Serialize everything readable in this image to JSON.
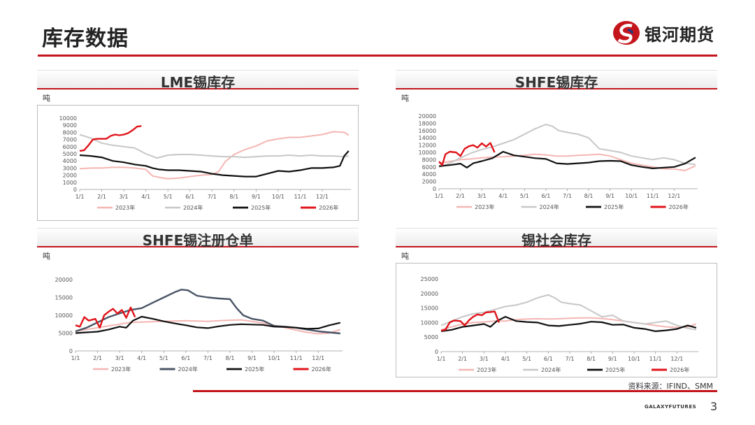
{
  "page": {
    "title": "库存数据",
    "source": "资料来源：IFIND、SMM",
    "page_number": "3",
    "footer_brand": "GALAXYFUTURES"
  },
  "brand": {
    "name": "银河期货",
    "accent": "#c4151c",
    "logo_color": "#c4151c",
    "logo_blue": "#1d3a8a"
  },
  "panels": [
    {
      "title": "LME锡库存",
      "unit": "吨"
    },
    {
      "title": "SHFE锡库存",
      "unit": "吨"
    },
    {
      "title": "SHFE锡注册仓单",
      "unit": "吨"
    },
    {
      "title": "锡社会库存",
      "unit": "吨"
    }
  ],
  "chart_data": [
    {
      "type": "line",
      "title": "LME锡库存",
      "ylabel": "吨",
      "xticks": [
        "1/1",
        "2/1",
        "3/1",
        "4/1",
        "5/1",
        "6/1",
        "7/1",
        "8/1",
        "9/1",
        "10/1",
        "11/1",
        "12/1"
      ],
      "xlim": [
        1,
        13.3
      ],
      "ylim": [
        0,
        10000
      ],
      "yticks": [
        0,
        1000,
        2000,
        3000,
        4000,
        5000,
        6000,
        7000,
        8000,
        9000,
        10000
      ],
      "series": [
        {
          "name": "2023年",
          "color": "#f4b6b3",
          "width": 2,
          "x": [
            1,
            1.5,
            2,
            2.5,
            3,
            3.5,
            4,
            4.3,
            4.6,
            5,
            5.5,
            6,
            6.5,
            7,
            7.3,
            7.6,
            8,
            8.5,
            9,
            9.5,
            10,
            10.5,
            11,
            11.5,
            12,
            12.5,
            13,
            13.2
          ],
          "y": [
            2900,
            3000,
            3000,
            3100,
            3100,
            3000,
            2800,
            1900,
            1700,
            1500,
            1600,
            1800,
            2000,
            2100,
            2500,
            3900,
            4900,
            5600,
            6100,
            6800,
            7100,
            7300,
            7300,
            7500,
            7700,
            8100,
            8000,
            7600
          ]
        },
        {
          "name": "2024年",
          "color": "#c7c7c7",
          "width": 2,
          "x": [
            1,
            1.5,
            2,
            2.5,
            3,
            3.5,
            4,
            4.5,
            5,
            5.5,
            6,
            6.5,
            7,
            7.5,
            8,
            8.5,
            9,
            9.5,
            10,
            10.5,
            11,
            11.5,
            12,
            12.5,
            13,
            13.2
          ],
          "y": [
            7700,
            7200,
            6500,
            6200,
            6000,
            5800,
            5000,
            4400,
            4800,
            4900,
            4900,
            4800,
            4700,
            4600,
            4600,
            4500,
            4600,
            4700,
            4700,
            4800,
            4700,
            4800,
            4700,
            4700,
            4600,
            4700
          ]
        },
        {
          "name": "2025年",
          "color": "#111111",
          "width": 2.2,
          "x": [
            1,
            1.5,
            2,
            2.5,
            3,
            3.5,
            4,
            4.3,
            4.6,
            5,
            5.5,
            6,
            6.5,
            7,
            7.5,
            8,
            8.5,
            9,
            9.5,
            10,
            10.5,
            11,
            11.5,
            12,
            12.5,
            12.8,
            13,
            13.2
          ],
          "y": [
            4800,
            4700,
            4500,
            4000,
            3800,
            3500,
            3300,
            3000,
            2800,
            2700,
            2700,
            2600,
            2500,
            2200,
            2000,
            1900,
            1800,
            1800,
            2200,
            2600,
            2500,
            2700,
            3000,
            3000,
            3100,
            3300,
            4700,
            5400
          ]
        },
        {
          "name": "2026年",
          "color": "#e0141a",
          "width": 2.4,
          "x": [
            1,
            1.2,
            1.4,
            1.6,
            1.8,
            2,
            2.2,
            2.4,
            2.6,
            2.8,
            3,
            3.2,
            3.4,
            3.6,
            3.8
          ],
          "y": [
            5400,
            5500,
            6200,
            7000,
            7100,
            7100,
            7100,
            7500,
            7700,
            7600,
            7700,
            7900,
            8300,
            8800,
            8900
          ]
        }
      ]
    },
    {
      "type": "line",
      "title": "SHFE锡库存",
      "ylabel": "吨",
      "xticks": [
        "1/1",
        "2/1",
        "3/1",
        "4/1",
        "5/1",
        "6/1",
        "7/1",
        "8/1",
        "9/1",
        "10/1",
        "11/1",
        "12/1"
      ],
      "xlim": [
        1,
        13.1
      ],
      "ylim": [
        0,
        20000
      ],
      "yticks": [
        0,
        2000,
        4000,
        6000,
        8000,
        10000,
        12000,
        14000,
        16000,
        18000,
        20000
      ],
      "series": [
        {
          "name": "2023年",
          "color": "#f4b6b3",
          "width": 2,
          "x": [
            1,
            1.5,
            2,
            2.5,
            3,
            3.5,
            4,
            4.5,
            5,
            5.5,
            6,
            6.5,
            7,
            7.5,
            8,
            8.5,
            9,
            9.5,
            10,
            10.5,
            11,
            11.5,
            12,
            12.5,
            13
          ],
          "y": [
            7000,
            7500,
            8000,
            8200,
            8500,
            8700,
            8800,
            9000,
            9200,
            9500,
            9300,
            9000,
            9000,
            9200,
            9300,
            9500,
            9000,
            8000,
            7000,
            6500,
            6000,
            5500,
            5400,
            5000,
            6300
          ]
        },
        {
          "name": "2024年",
          "color": "#c7c7c7",
          "width": 2,
          "x": [
            1,
            1.5,
            2,
            2.5,
            3,
            3.5,
            4,
            4.5,
            5,
            5.5,
            6,
            6.3,
            6.6,
            7,
            7.5,
            8,
            8.5,
            9,
            9.5,
            10,
            10.5,
            11,
            11.5,
            12,
            12.5,
            13
          ],
          "y": [
            6000,
            7000,
            8500,
            9800,
            10800,
            11500,
            12500,
            13500,
            15000,
            16500,
            17700,
            17200,
            16000,
            15500,
            15000,
            14000,
            11000,
            10500,
            10000,
            9000,
            8500,
            8000,
            8500,
            8000,
            7000,
            6700
          ]
        },
        {
          "name": "2025年",
          "color": "#111111",
          "width": 2.2,
          "x": [
            1,
            1.5,
            2,
            2.3,
            2.6,
            3,
            3.5,
            4,
            4.5,
            5,
            5.5,
            6,
            6.5,
            7,
            7.5,
            8,
            8.5,
            9,
            9.5,
            10,
            10.5,
            11,
            11.5,
            12,
            12.5,
            13
          ],
          "y": [
            6200,
            6500,
            6900,
            5800,
            7000,
            7600,
            8400,
            10200,
            9200,
            8800,
            8400,
            8200,
            7000,
            6800,
            7000,
            7200,
            7600,
            7700,
            7600,
            6500,
            6000,
            5600,
            5800,
            6000,
            6900,
            8600
          ]
        },
        {
          "name": "2026年",
          "color": "#e0141a",
          "width": 2.4,
          "x": [
            1,
            1.15,
            1.3,
            1.5,
            1.8,
            2,
            2.2,
            2.4,
            2.6,
            2.8,
            3,
            3.2,
            3.4,
            3.6
          ],
          "y": [
            7500,
            6500,
            9500,
            10200,
            10000,
            9000,
            11000,
            11700,
            12000,
            11300,
            12500,
            11600,
            12600,
            10000
          ]
        }
      ]
    },
    {
      "type": "line",
      "title": "SHFE锡注册仓单",
      "ylabel": "吨",
      "xticks": [
        "1/1",
        "2/1",
        "3/1",
        "4/1",
        "5/1",
        "6/1",
        "7/1",
        "8/1",
        "9/1",
        "10/1",
        "11/1",
        "12/1"
      ],
      "xlim": [
        1,
        13.1
      ],
      "ylim": [
        0,
        20000
      ],
      "yticks": [
        0,
        5000,
        10000,
        15000,
        20000
      ],
      "series": [
        {
          "name": "2023年",
          "color": "#f4b6b3",
          "width": 2,
          "x": [
            1,
            1.5,
            2,
            2.5,
            3,
            3.5,
            4,
            4.5,
            5,
            5.5,
            6,
            6.5,
            7,
            7.5,
            8,
            8.5,
            9,
            9.5,
            10,
            10.5,
            11,
            11.5,
            12,
            12.5,
            13
          ],
          "y": [
            5500,
            6000,
            6500,
            7000,
            7500,
            8000,
            8100,
            8200,
            8300,
            8400,
            8500,
            8400,
            8300,
            8500,
            8600,
            8700,
            8300,
            7800,
            7200,
            6500,
            5800,
            5200,
            4800,
            5000,
            6000
          ]
        },
        {
          "name": "2024年",
          "color": "#4a5566",
          "width": 2.4,
          "x": [
            1,
            1.5,
            2,
            2.5,
            3,
            3.5,
            4,
            4.5,
            5,
            5.5,
            5.8,
            6.1,
            6.5,
            7,
            7.5,
            8,
            8.3,
            8.6,
            9,
            9.5,
            10,
            10.5,
            11,
            11.5,
            12,
            12.5,
            13
          ],
          "y": [
            5500,
            6500,
            8000,
            9500,
            10500,
            11500,
            12000,
            13500,
            15000,
            16500,
            17200,
            17000,
            15500,
            15000,
            14700,
            14500,
            12000,
            10000,
            9000,
            8500,
            7000,
            6800,
            6500,
            6000,
            5500,
            5200,
            4900
          ]
        },
        {
          "name": "2025年",
          "color": "#111111",
          "width": 2.2,
          "x": [
            1,
            1.5,
            2,
            2.5,
            3,
            3.3,
            3.6,
            4,
            4.5,
            5,
            5.5,
            6,
            6.5,
            7,
            7.5,
            8,
            8.5,
            9,
            9.5,
            10,
            10.5,
            11,
            11.5,
            12,
            12.5,
            13
          ],
          "y": [
            5000,
            5200,
            5400,
            6000,
            6800,
            6500,
            8500,
            9600,
            9000,
            8300,
            7700,
            7200,
            6600,
            6400,
            6900,
            7300,
            7500,
            7400,
            7300,
            6800,
            6700,
            6500,
            6200,
            6300,
            7200,
            7900
          ]
        },
        {
          "name": "2026年",
          "color": "#e0141a",
          "width": 2.4,
          "x": [
            1,
            1.2,
            1.4,
            1.6,
            1.9,
            2.1,
            2.3,
            2.5,
            2.7,
            2.9,
            3.1,
            3.3,
            3.5,
            3.7
          ],
          "y": [
            7200,
            6800,
            9500,
            8500,
            9000,
            6500,
            10000,
            11000,
            11800,
            10500,
            11500,
            9300,
            12200,
            9500
          ]
        }
      ]
    },
    {
      "type": "line",
      "title": "锡社会库存",
      "ylabel": "吨",
      "xticks": [
        "1/1",
        "2/1",
        "3/1",
        "4/1",
        "5/1",
        "6/1",
        "7/1",
        "8/1",
        "9/1",
        "10/1",
        "11/1",
        "12/1"
      ],
      "xlim": [
        1,
        13.0
      ],
      "ylim": [
        0,
        25000
      ],
      "yticks": [
        0,
        5000,
        10000,
        15000,
        20000,
        25000
      ],
      "series": [
        {
          "name": "2023年",
          "color": "#f4b6b3",
          "width": 2,
          "x": [
            1,
            1.5,
            2,
            2.5,
            3,
            3.5,
            4,
            4.5,
            5,
            5.5,
            6,
            6.5,
            7,
            7.5,
            8,
            8.5,
            9,
            9.5,
            10,
            10.5,
            11,
            11.5,
            12,
            12.5,
            12.9
          ],
          "y": [
            7500,
            8500,
            9500,
            10000,
            10200,
            10500,
            10500,
            11000,
            11200,
            11300,
            11200,
            11300,
            11500,
            11600,
            11600,
            11400,
            11000,
            10500,
            10000,
            9500,
            9000,
            8500,
            8300,
            8500,
            9500
          ]
        },
        {
          "name": "2024年",
          "color": "#c7c7c7",
          "width": 2,
          "x": [
            1,
            1.5,
            2,
            2.5,
            3,
            3.5,
            4,
            4.5,
            5,
            5.5,
            6,
            6.3,
            6.6,
            7,
            7.5,
            8,
            8.5,
            9,
            9.5,
            10,
            10.5,
            11,
            11.5,
            12,
            12.5,
            12.9
          ],
          "y": [
            9000,
            10500,
            12000,
            13000,
            13500,
            14500,
            15500,
            16000,
            17000,
            18500,
            19500,
            18500,
            17000,
            16500,
            16000,
            14000,
            12000,
            12500,
            10500,
            10000,
            9500,
            10000,
            10500,
            9000,
            8000,
            7500
          ]
        },
        {
          "name": "2025年",
          "color": "#111111",
          "width": 2.2,
          "x": [
            1,
            1.5,
            2,
            2.5,
            3,
            3.3,
            3.6,
            4,
            4.5,
            5,
            5.5,
            6,
            6.5,
            7,
            7.5,
            8,
            8.5,
            9,
            9.5,
            10,
            10.5,
            11,
            11.5,
            12,
            12.5,
            12.9
          ],
          "y": [
            7000,
            7500,
            8500,
            9000,
            9500,
            8500,
            10500,
            12000,
            10500,
            10200,
            10000,
            9000,
            8800,
            9200,
            9600,
            10300,
            10100,
            9200,
            9300,
            8200,
            7800,
            7000,
            7300,
            7800,
            9000,
            8200
          ]
        },
        {
          "name": "2026年",
          "color": "#e0141a",
          "width": 2.4,
          "x": [
            1,
            1.2,
            1.4,
            1.6,
            1.9,
            2.1,
            2.3,
            2.5,
            2.7,
            2.9,
            3.1,
            3.3,
            3.5,
            3.7
          ],
          "y": [
            7200,
            7500,
            10000,
            10700,
            10500,
            9000,
            10800,
            12000,
            12800,
            12500,
            13500,
            13600,
            13800,
            10000
          ]
        }
      ]
    }
  ]
}
